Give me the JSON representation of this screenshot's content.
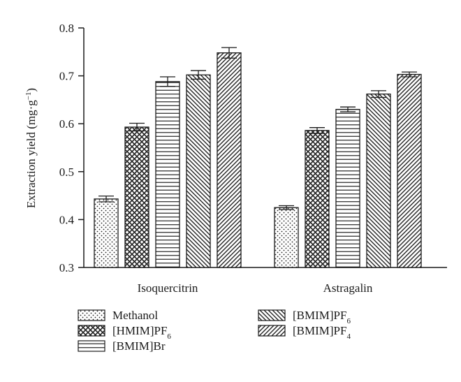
{
  "chart_data": {
    "type": "bar",
    "title": "",
    "xlabel": "",
    "ylabel": "Extraction yield (mg·g",
    "ylabel_sup": "−1",
    "ylabel_close": ")",
    "ylim": [
      0.3,
      0.8
    ],
    "yticks": [
      {
        "value": 0.3,
        "label": "0.3"
      },
      {
        "value": 0.4,
        "label": "0.4"
      },
      {
        "value": 0.5,
        "label": "0.5"
      },
      {
        "value": 0.6,
        "label": "0.6"
      },
      {
        "value": 0.7,
        "label": "0.7"
      },
      {
        "value": 0.8,
        "label": "0.8"
      }
    ],
    "categories": [
      "Isoquercitrin",
      "Astragalin"
    ],
    "grid": false,
    "legend_position": "bottom-left",
    "series": [
      {
        "name": "Methanol",
        "sub": "",
        "pattern": "dots",
        "values": [
          0.443,
          0.425
        ],
        "errors": [
          0.006,
          0.004
        ]
      },
      {
        "name": "[HMIM]PF",
        "sub": "6",
        "pattern": "crosshatch",
        "values": [
          0.593,
          0.586
        ],
        "errors": [
          0.008,
          0.006
        ]
      },
      {
        "name": "[BMIM]Br",
        "sub": "",
        "pattern": "horizontal",
        "values": [
          0.688,
          0.63
        ],
        "errors": [
          0.01,
          0.005
        ]
      },
      {
        "name": "[BMIM]PF",
        "sub": "6",
        "pattern": "diag-down",
        "values": [
          0.702,
          0.662
        ],
        "errors": [
          0.009,
          0.007
        ]
      },
      {
        "name": "[BMIM]PF",
        "sub": "4",
        "pattern": "diag-up",
        "values": [
          0.748,
          0.703
        ],
        "errors": [
          0.011,
          0.005
        ]
      }
    ]
  }
}
